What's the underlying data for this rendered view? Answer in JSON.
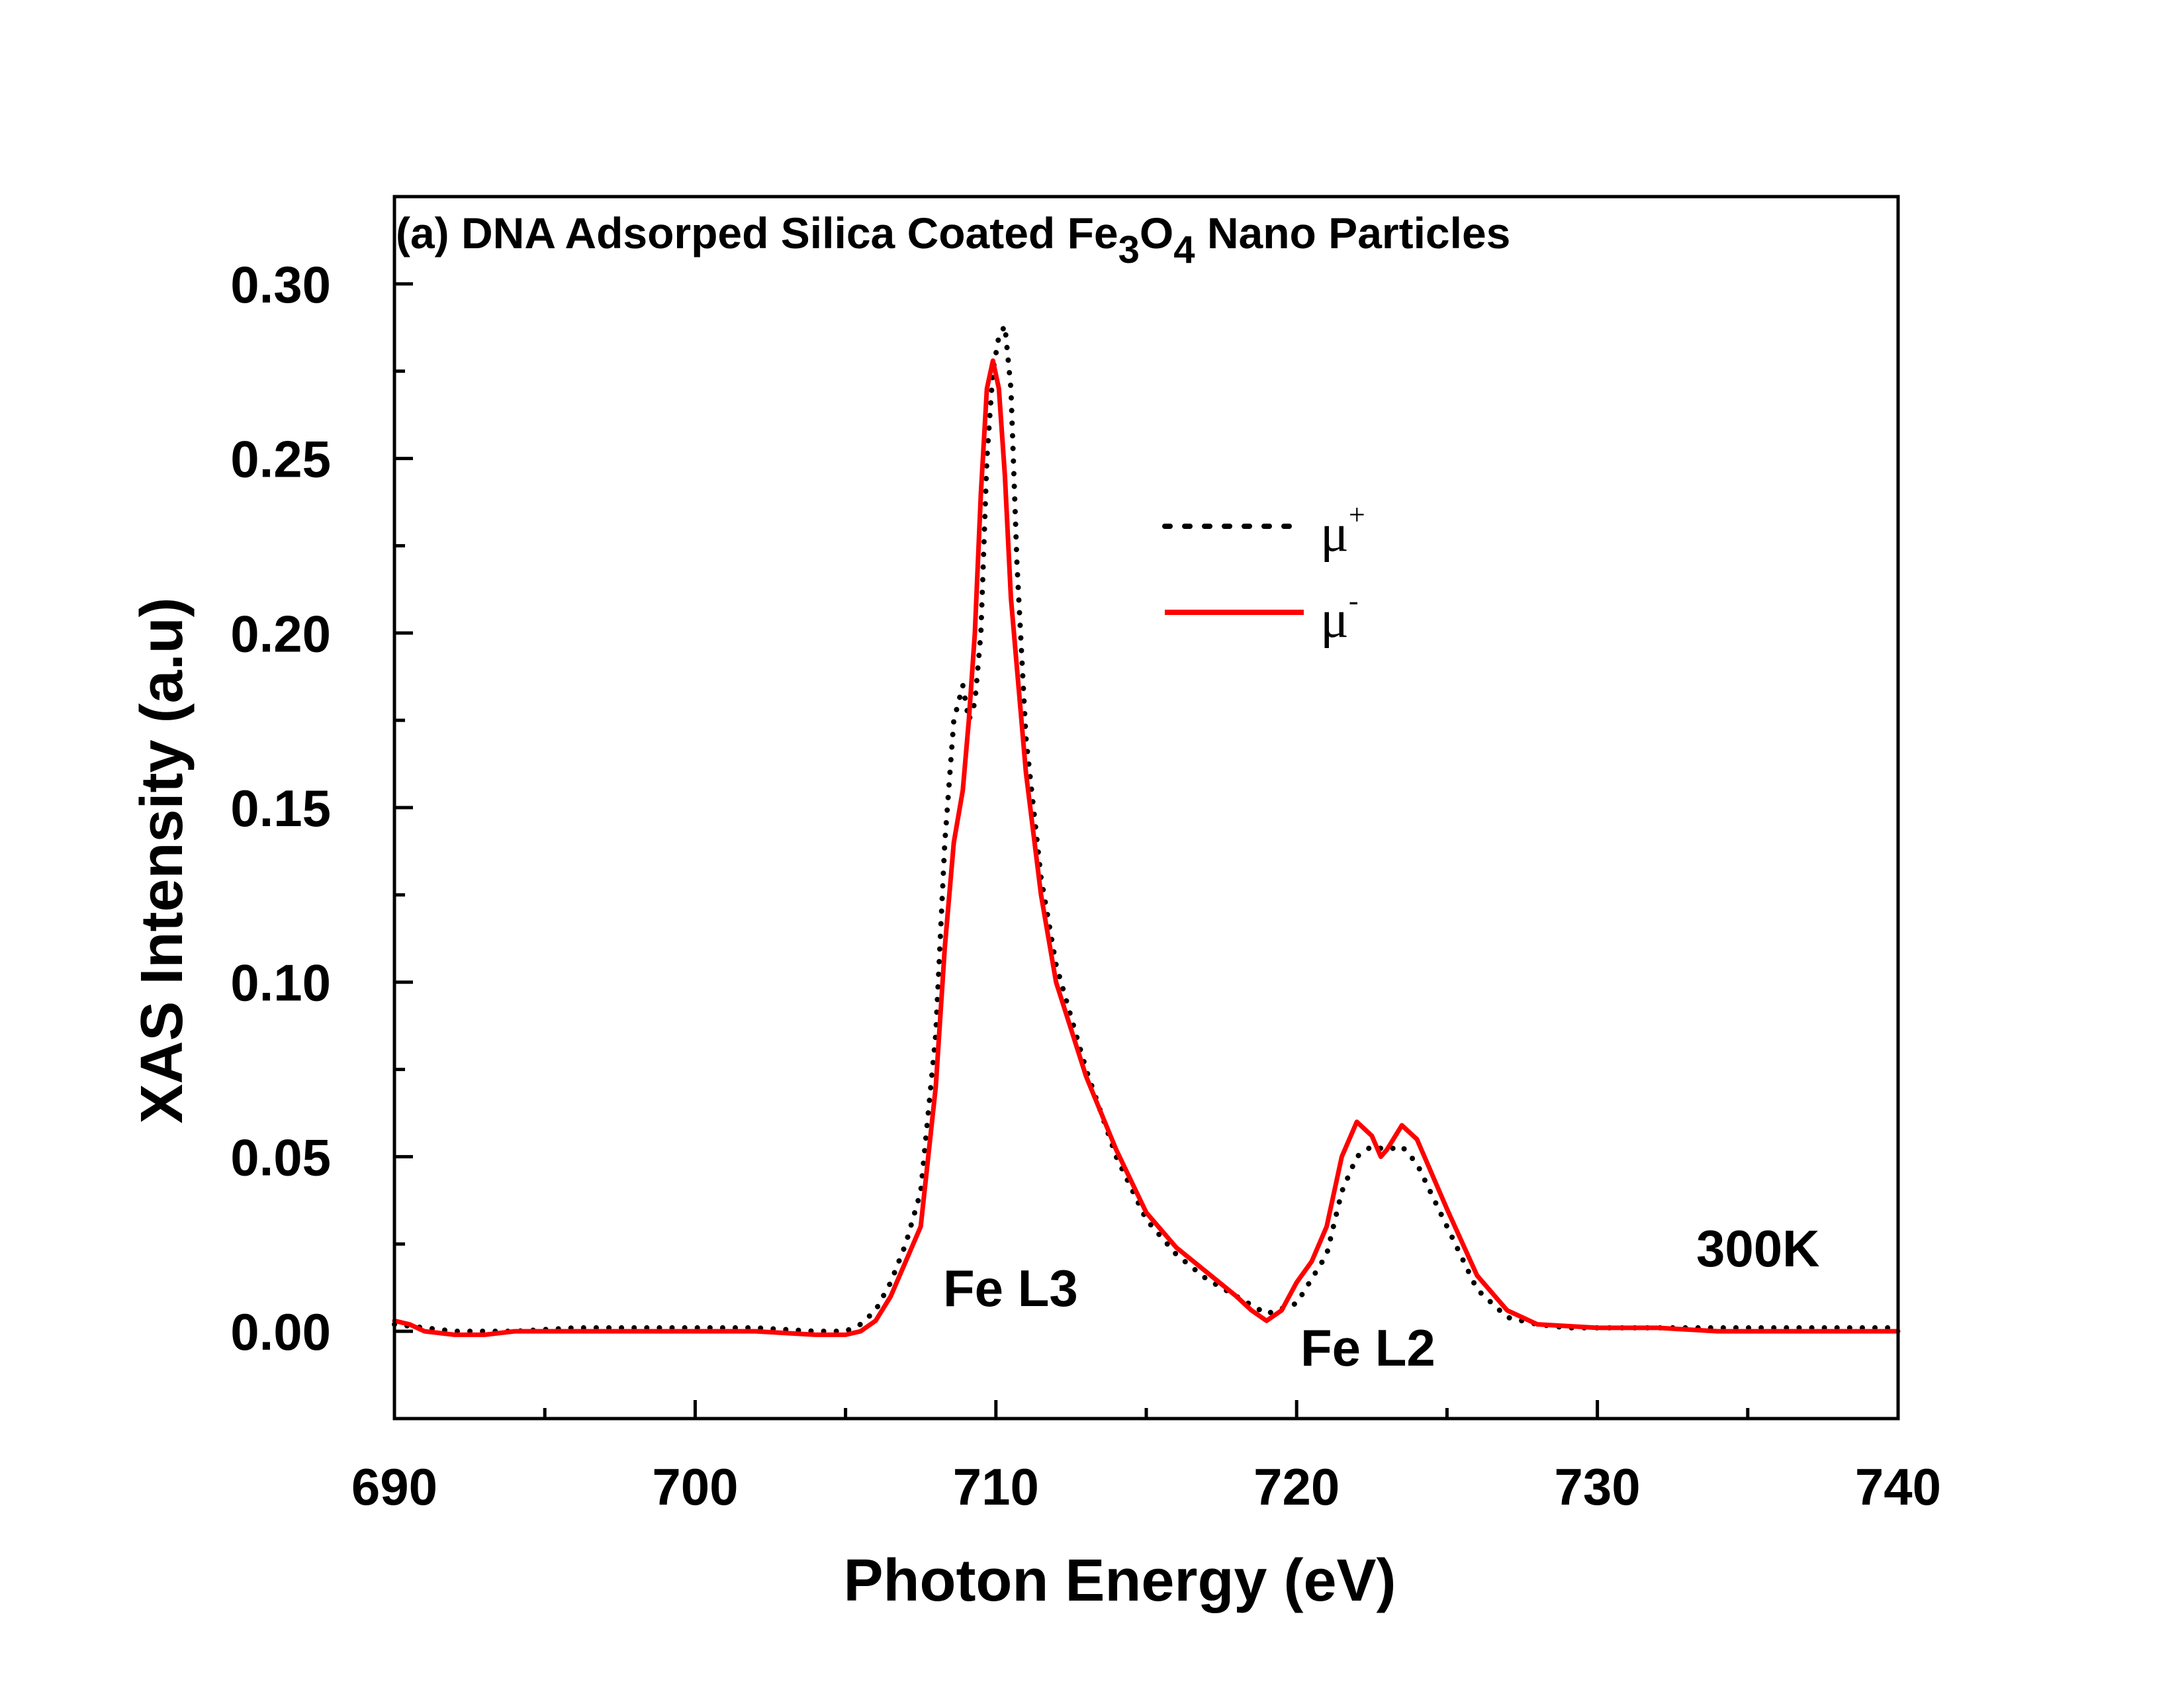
{
  "chart_data": {
    "type": "line",
    "title": "(a) DNA Adsorped Silica Coated Fe3O4 Nano Particles",
    "title_parts": {
      "prefix": "(a) DNA Adsorped Silica Coated Fe",
      "sub1": "3",
      "mid": "O",
      "sub2": "4",
      "suffix": " Nano Particles"
    },
    "xlabel": "Photon Energy (eV)",
    "ylabel": "XAS Intensity (a.u)",
    "xlim": [
      690,
      740
    ],
    "ylim": [
      -0.025,
      0.325
    ],
    "xticks": [
      690,
      700,
      710,
      720,
      730,
      740
    ],
    "xtick_labels": [
      "690",
      "700",
      "710",
      "720",
      "730",
      "740"
    ],
    "yticks": [
      0.0,
      0.05,
      0.1,
      0.15,
      0.2,
      0.25,
      0.3
    ],
    "ytick_labels": [
      "0.00",
      "0.05",
      "0.10",
      "0.15",
      "0.20",
      "0.25",
      "0.30"
    ],
    "grid": false,
    "legend_position": "upper-center-right",
    "annotations": [
      "Fe L3",
      "Fe L2",
      "300K"
    ],
    "series": [
      {
        "name": "μ+",
        "legend_symbol": "μ",
        "legend_sup": "+",
        "color": "#000000",
        "style": "dotted",
        "x": [
          690,
          692,
          694,
          696,
          698,
          700,
          702,
          704,
          705,
          705.5,
          706,
          706.5,
          707,
          707.5,
          708,
          708.3,
          708.6,
          708.9,
          709.1,
          709.3,
          709.5,
          709.7,
          709.9,
          710.1,
          710.3,
          710.5,
          710.7,
          711,
          711.5,
          712,
          713,
          714,
          715,
          716,
          717,
          718,
          719,
          720,
          720.5,
          721,
          721.5,
          722,
          722.5,
          723,
          723.5,
          724,
          725,
          726,
          727,
          728,
          729,
          730,
          732,
          734,
          736,
          738,
          740
        ],
        "y": [
          0.002,
          0.0,
          0.0,
          0.001,
          0.001,
          0.001,
          0.001,
          0.0,
          0.0,
          0.002,
          0.006,
          0.014,
          0.025,
          0.04,
          0.085,
          0.14,
          0.175,
          0.185,
          0.175,
          0.18,
          0.2,
          0.25,
          0.275,
          0.285,
          0.288,
          0.27,
          0.22,
          0.17,
          0.13,
          0.105,
          0.075,
          0.05,
          0.032,
          0.022,
          0.015,
          0.01,
          0.005,
          0.008,
          0.015,
          0.022,
          0.04,
          0.05,
          0.053,
          0.052,
          0.053,
          0.048,
          0.03,
          0.012,
          0.004,
          0.002,
          0.001,
          0.001,
          0.001,
          0.001,
          0.001,
          0.001,
          0.001
        ]
      },
      {
        "name": "μ-",
        "legend_symbol": "μ",
        "legend_sup": "-",
        "color": "#ff0000",
        "style": "solid",
        "x": [
          690,
          690.5,
          691,
          692,
          693,
          694,
          696,
          698,
          700,
          702,
          704,
          705,
          705.5,
          706,
          706.5,
          707,
          707.5,
          708,
          708.3,
          708.6,
          708.9,
          709.1,
          709.3,
          709.5,
          709.7,
          709.9,
          710.1,
          710.3,
          710.5,
          711,
          711.5,
          712,
          713,
          714,
          715,
          716,
          717,
          718,
          718.5,
          719,
          719.5,
          720,
          720.5,
          721,
          721.5,
          722,
          722.5,
          722.8,
          723,
          723.5,
          724,
          724.5,
          725,
          726,
          727,
          728,
          730,
          732,
          734,
          736,
          738,
          740
        ],
        "y": [
          0.003,
          0.002,
          0.0,
          -0.001,
          -0.001,
          0.0,
          0.0,
          0.0,
          0.0,
          0.0,
          -0.001,
          -0.001,
          0.0,
          0.003,
          0.01,
          0.02,
          0.03,
          0.07,
          0.11,
          0.14,
          0.155,
          0.175,
          0.2,
          0.24,
          0.27,
          0.278,
          0.27,
          0.245,
          0.21,
          0.16,
          0.125,
          0.1,
          0.073,
          0.052,
          0.034,
          0.024,
          0.017,
          0.01,
          0.006,
          0.003,
          0.006,
          0.014,
          0.02,
          0.03,
          0.05,
          0.06,
          0.056,
          0.05,
          0.052,
          0.059,
          0.055,
          0.045,
          0.035,
          0.016,
          0.006,
          0.002,
          0.001,
          0.001,
          0.0,
          0.0,
          0.0,
          0.0
        ]
      }
    ]
  }
}
